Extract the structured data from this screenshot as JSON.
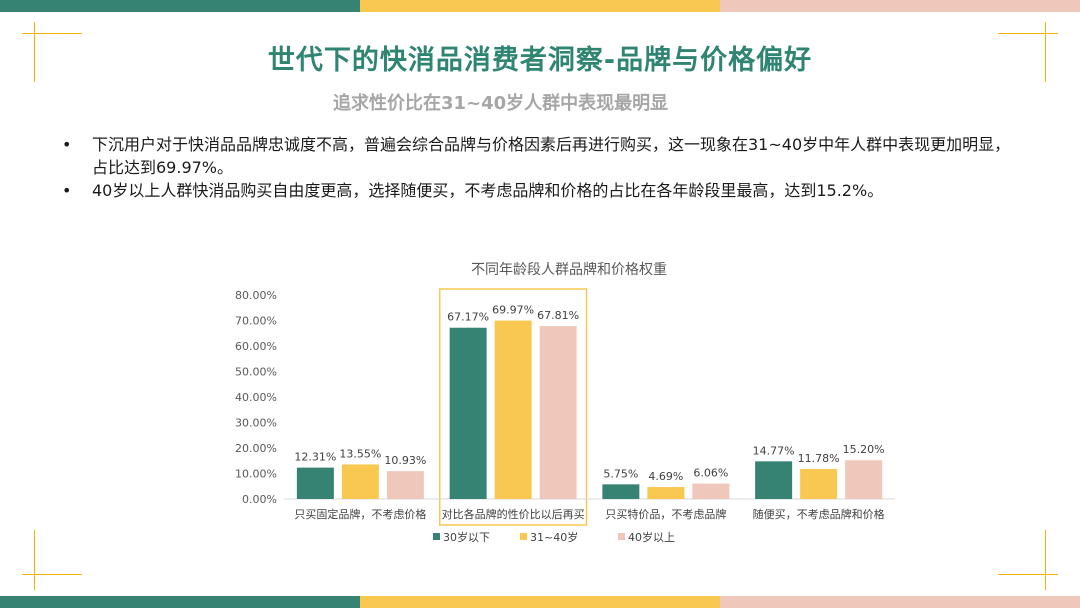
{
  "colors": {
    "teal": "#368373",
    "yellow": "#f9c851",
    "pink": "#f0c7bb",
    "accent": "#f0b400"
  },
  "title": "世代下的快消品消费者洞察-品牌与价格偏好",
  "subtitle": "追求性价比在31~40岁人群中表现最明显",
  "bullets": [
    "下沉用户对于快消品品牌忠诚度不高，普遍会综合品牌与价格因素后再进行购买，这一现象在31~40岁中年人群中表现更加明显，占比达到69.97%。",
    "40岁以上人群快消品购买自由度更高，选择随便买，不考虑品牌和价格的占比在各年龄段里最高，达到15.2%。"
  ],
  "bullet_symbol": "•",
  "chart_data": {
    "type": "bar",
    "title": "不同年龄段人群品牌和价格权重",
    "categories": [
      "只买固定品牌，不考虑价格",
      "对比各品牌的性价比以后再买",
      "只买特价品，不考虑品牌",
      "随便买，不考虑品牌和价格"
    ],
    "series": [
      {
        "name": "30岁以下",
        "values": [
          12.31,
          67.17,
          5.75,
          14.77
        ],
        "labels": [
          "12.31%",
          "67.17%",
          "5.75%",
          "14.77%"
        ],
        "color": "#368373"
      },
      {
        "name": "31~40岁",
        "values": [
          13.55,
          69.97,
          4.69,
          11.78
        ],
        "labels": [
          "13.55%",
          "69.97%",
          "4.69%",
          "11.78%"
        ],
        "color": "#f9c851"
      },
      {
        "name": "40岁以上",
        "values": [
          10.93,
          67.81,
          6.06,
          15.2
        ],
        "labels": [
          "10.93%",
          "67.81%",
          "6.06%",
          "15.20%"
        ],
        "color": "#f0c7bb"
      }
    ],
    "ylim": [
      0,
      80
    ],
    "yticks": [
      "0.00%",
      "10.00%",
      "20.00%",
      "30.00%",
      "40.00%",
      "50.00%",
      "60.00%",
      "70.00%",
      "80.00%"
    ],
    "highlighted_category": "对比各品牌的性价比以后再买",
    "legend_position": "bottom",
    "grid": false
  }
}
